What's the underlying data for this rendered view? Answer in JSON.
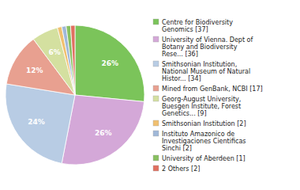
{
  "chart_data": {
    "type": "pie",
    "categories": [
      "Centre for Biodiversity\nGenomics [37]",
      "University of Vienna. Dept of\nBotany and Biodiversity\nRese... [36]",
      "Smithsonian Institution,\nNational Museum of Natural\nHistor... [34]",
      "Mined from GenBank, NCBI [17]",
      "Georg-August University,\nBuesgen Institute, Forest\nGenetics... [9]",
      "Smithsonian Institution [2]",
      "Instituto Amazonico de\nInvestigaciones Cientificas\nSinchi [2]",
      "University of Aberdeen [1]",
      "2 Others [2]"
    ],
    "values": [
      26,
      26,
      24,
      12,
      6,
      1,
      1,
      1,
      1
    ],
    "value_labels": [
      "26%",
      "26%",
      "24%",
      "12%",
      "6%",
      null,
      null,
      null,
      null
    ],
    "colors": [
      "#7bc45a",
      "#d4a8d8",
      "#b8cce4",
      "#e8a090",
      "#d4e0a0",
      "#f0c070",
      "#a0b8d8",
      "#88c060",
      "#e07060"
    ],
    "data_labels": true,
    "legend": "right"
  }
}
